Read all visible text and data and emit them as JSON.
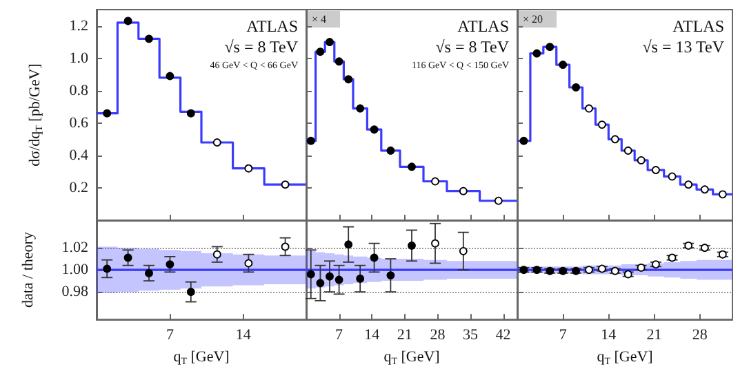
{
  "chart_data": [
    {
      "type": "scatter",
      "ylabel": "dσ/dq$_{T}$ [pb/GeV]",
      "xlim": [
        0,
        20
      ],
      "xticks": [
        7,
        14
      ],
      "ylim": [
        0,
        1.3
      ],
      "yticks": [
        0.2,
        0.4,
        0.6,
        0.8,
        {
          "value": 1,
          "label": "1.0"
        },
        1.2
      ],
      "tick_labels": "y",
      "marker": "circle",
      "annotations": [
        "ATLAS",
        "√s = 8 TeV",
        "46 GeV < Q < 66 GeV"
      ],
      "series": [
        {
          "type": "step",
          "marker": "none",
          "color": "#3b3bff",
          "x": [
            0,
            2,
            4,
            6,
            8,
            10,
            13,
            16,
            20
          ],
          "values": [
            0.66,
            1.22,
            1.12,
            0.88,
            0.67,
            0.48,
            0.32,
            0.22,
            0.22
          ]
        },
        {
          "color": "#000000",
          "x": [
            1,
            3,
            5,
            7,
            9
          ],
          "values": [
            0.66,
            1.23,
            1.12,
            0.89,
            0.66
          ]
        },
        {
          "color": "#ffffff",
          "x": [
            11.5,
            14.5,
            18
          ],
          "values": [
            0.48,
            0.32,
            0.22
          ]
        }
      ]
    },
    {
      "type": "scatter",
      "xlim": [
        0,
        45
      ],
      "xticks": [
        7,
        14,
        21,
        28,
        35,
        42
      ],
      "ylim": [
        0,
        1.3
      ],
      "yticks": [
        0.2,
        0.4,
        0.6,
        0.8,
        1,
        1.2
      ],
      "tick_labels": false,
      "marker": "circle",
      "annotations": [
        "× 4",
        "ATLAS",
        "√s = 8 TeV",
        "116 GeV < Q < 150 GeV"
      ],
      "series": [
        {
          "type": "step",
          "marker": "none",
          "color": "#3b3bff",
          "x": [
            0,
            2,
            4,
            6,
            8,
            10,
            13,
            16,
            20,
            25,
            30,
            37,
            45
          ],
          "values": [
            0.49,
            1.04,
            1.1,
            0.98,
            0.87,
            0.69,
            0.56,
            0.43,
            0.33,
            0.24,
            0.18,
            0.12,
            0.12
          ]
        },
        {
          "color": "#000000",
          "x": [
            1,
            3,
            5,
            7,
            9,
            11.5,
            14.5,
            18,
            22.5
          ],
          "values": [
            0.49,
            1.04,
            1.1,
            0.98,
            0.87,
            0.69,
            0.56,
            0.43,
            0.33
          ]
        },
        {
          "color": "#ffffff",
          "x": [
            27.5,
            33.5,
            41
          ],
          "values": [
            0.24,
            0.18,
            0.12
          ]
        }
      ]
    },
    {
      "type": "scatter",
      "xlim": [
        0,
        33
      ],
      "xticks": [
        7,
        14,
        21,
        28
      ],
      "ylim": [
        0,
        1.3
      ],
      "yticks": [
        0.2,
        0.4,
        0.6,
        0.8,
        1,
        1.2
      ],
      "tick_labels": false,
      "marker": "circle",
      "annotations": [
        "× 20",
        "ATLAS",
        "√s = 13 TeV"
      ],
      "series": [
        {
          "type": "step",
          "marker": "none",
          "color": "#3b3bff",
          "x": [
            0,
            2,
            4,
            6,
            8,
            10,
            12,
            14,
            16,
            18,
            20,
            22.5,
            25,
            27.5,
            30,
            33
          ],
          "values": [
            0.49,
            1.03,
            1.07,
            0.96,
            0.82,
            0.69,
            0.59,
            0.5,
            0.43,
            0.37,
            0.31,
            0.27,
            0.22,
            0.19,
            0.16,
            0.16
          ]
        },
        {
          "color": "#000000",
          "x": [
            1,
            3,
            5,
            7,
            9
          ],
          "values": [
            0.49,
            1.03,
            1.07,
            0.96,
            0.82
          ]
        },
        {
          "color": "#ffffff",
          "x": [
            11,
            13,
            15,
            17,
            19,
            21.25,
            23.75,
            26.25,
            28.75,
            31.5
          ],
          "values": [
            0.69,
            0.59,
            0.5,
            0.43,
            0.37,
            0.31,
            0.27,
            0.22,
            0.19,
            0.16
          ]
        }
      ]
    },
    {
      "type": "scatter",
      "ylabel": "data / theory",
      "xlabel": "q$_{T}$ [GeV]",
      "xlim": [
        0,
        20
      ],
      "xticks": [
        7,
        14
      ],
      "ylim": [
        0.955,
        1.045
      ],
      "yticks": [
        0.98,
        {
          "value": 1,
          "label": "1.00"
        },
        1.02
      ],
      "grid": "y",
      "marker": "circle",
      "series": [
        {
          "type": "step",
          "marker": "none",
          "color": "#3b3bff",
          "x": [
            0,
            2,
            4,
            6,
            8,
            10,
            13,
            16,
            20
          ],
          "values": [
            1,
            1,
            1,
            1,
            1,
            1,
            1,
            1,
            1
          ],
          "lower": [
            0.979,
            0.98,
            0.981,
            0.982,
            0.983,
            0.985,
            0.986,
            0.987,
            0.987
          ],
          "upper": [
            1.021,
            1.02,
            1.019,
            1.018,
            1.017,
            1.015,
            1.014,
            1.013,
            1.013
          ]
        },
        {
          "color": "#000000",
          "x": [
            1,
            3,
            5,
            7,
            9
          ],
          "values": [
            1.001,
            1.011,
            0.997,
            1.005,
            0.98
          ],
          "errors": [
            0.008,
            0.007,
            0.007,
            0.007,
            0.009
          ]
        },
        {
          "color": "#ffffff",
          "x": [
            11.5,
            14.5,
            18
          ],
          "values": [
            1.014,
            1.006,
            1.021
          ],
          "errors": [
            0.007,
            0.008,
            0.008
          ]
        }
      ]
    },
    {
      "type": "scatter",
      "xlabel": "q$_{T}$ [GeV]",
      "xlim": [
        0,
        45
      ],
      "xticks": [
        7,
        14,
        21,
        28,
        35,
        42
      ],
      "ylim": [
        0.955,
        1.045
      ],
      "yticks": [
        0.98,
        1,
        1.02
      ],
      "grid": "y",
      "tick_labels": "x",
      "marker": "circle",
      "series": [
        {
          "type": "step",
          "marker": "none",
          "color": "#3b3bff",
          "x": [
            0,
            2,
            4,
            6,
            8,
            10,
            13,
            16,
            20,
            25,
            30,
            37,
            45
          ],
          "values": [
            1,
            1,
            1,
            1,
            1,
            1,
            1,
            1,
            1,
            1,
            1,
            1,
            1
          ],
          "lower": [
            0.983,
            0.984,
            0.985,
            0.986,
            0.987,
            0.988,
            0.989,
            0.99,
            0.99,
            0.991,
            0.992,
            0.992,
            0.992
          ],
          "upper": [
            1.017,
            1.016,
            1.015,
            1.014,
            1.013,
            1.012,
            1.011,
            1.01,
            1.01,
            1.009,
            1.008,
            1.008,
            1.008
          ]
        },
        {
          "color": "#000000",
          "x": [
            1,
            3,
            5,
            7,
            9,
            11.5,
            14.5,
            18,
            22.5
          ],
          "values": [
            0.996,
            0.988,
            0.994,
            0.991,
            1.023,
            0.992,
            1.011,
            0.995,
            1.022
          ],
          "errors": [
            0.022,
            0.016,
            0.014,
            0.013,
            0.016,
            0.012,
            0.013,
            0.015,
            0.014
          ]
        },
        {
          "color": "#ffffff",
          "x": [
            27.5,
            33.5
          ],
          "values": [
            1.024,
            1.017
          ],
          "errors": [
            0.018,
            0.017
          ]
        }
      ]
    },
    {
      "type": "scatter",
      "xlabel": "q$_{T}$ [GeV]",
      "xlim": [
        0,
        33
      ],
      "xticks": [
        7,
        14,
        21,
        28
      ],
      "ylim": [
        0.955,
        1.045
      ],
      "yticks": [
        0.98,
        1,
        1.02
      ],
      "grid": "y",
      "tick_labels": "x",
      "marker": "circle",
      "series": [
        {
          "type": "step",
          "marker": "none",
          "color": "#3b3bff",
          "x": [
            0,
            2,
            4,
            6,
            8,
            10,
            12,
            14,
            16,
            18,
            20,
            22.5,
            25,
            27.5,
            30,
            33
          ],
          "values": [
            1,
            1,
            1,
            1,
            1,
            1,
            1,
            1,
            1,
            1,
            1,
            1,
            1,
            1,
            1,
            1
          ],
          "lower": [
            0.997,
            0.997,
            0.997,
            0.997,
            0.997,
            0.996,
            0.996,
            0.996,
            0.995,
            0.995,
            0.994,
            0.993,
            0.992,
            0.991,
            0.991,
            0.991
          ],
          "upper": [
            1.003,
            1.003,
            1.003,
            1.003,
            1.003,
            1.004,
            1.004,
            1.004,
            1.005,
            1.005,
            1.006,
            1.007,
            1.008,
            1.009,
            1.009,
            1.009
          ]
        },
        {
          "color": "#000000",
          "x": [
            1,
            3,
            5,
            7,
            9
          ],
          "values": [
            1.0,
            1.0,
            0.999,
            0.999,
            0.999
          ],
          "errors": [
            0.002,
            0.002,
            0.002,
            0.002,
            0.002
          ]
        },
        {
          "color": "#ffffff",
          "x": [
            11,
            13,
            15,
            17,
            19,
            21.25,
            23.75,
            26.25,
            28.75,
            31.5
          ],
          "values": [
            1.0,
            1.001,
            0.999,
            0.996,
            1.002,
            1.005,
            1.011,
            1.022,
            1.02,
            1.014
          ],
          "errors": [
            0.002,
            0.002,
            0.002,
            0.002,
            0.002,
            0.002,
            0.002,
            0.002,
            0.002,
            0.002
          ]
        }
      ]
    }
  ]
}
